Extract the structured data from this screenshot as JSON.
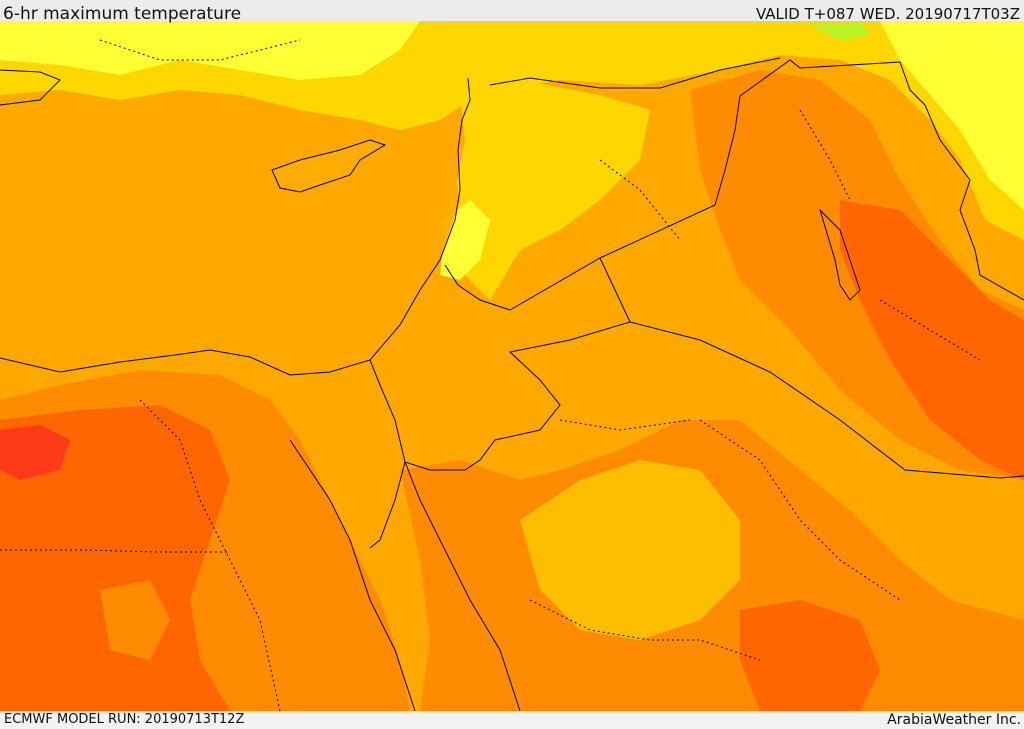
{
  "header": {
    "title": "6-hr maximum temperature",
    "valid": "VALID T+087 WED. 20190717T03Z"
  },
  "footer": {
    "model_run": "ECMWF MODEL RUN: 20190713T12Z",
    "credit": "ArabiaWeather Inc."
  },
  "colors": {
    "bright_yellow": "#ffff33",
    "yellow": "#ffd700",
    "light_orange": "#ffbd00",
    "orange": "#ffa800",
    "dark_orange": "#ff8c00",
    "red_orange": "#ff6600",
    "red": "#ff3a1a",
    "green_patch": "#9bff33",
    "border_line": "#000000"
  }
}
